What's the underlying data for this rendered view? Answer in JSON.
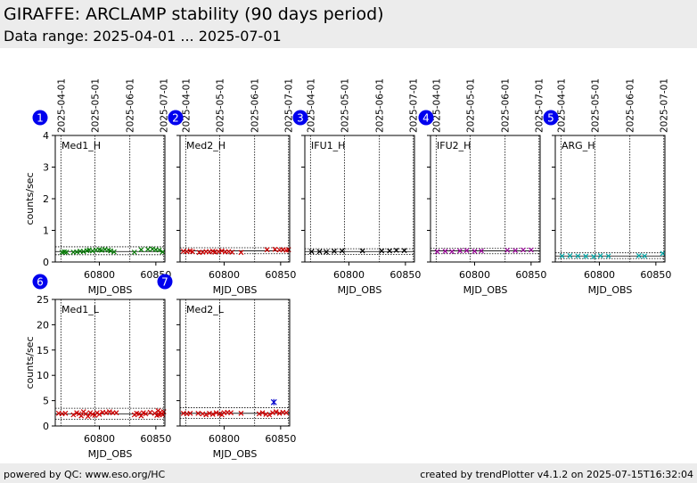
{
  "header": {
    "title": "GIRAFFE: ARCLAMP stability (90 days period)",
    "subtitle": "Data range: 2025-04-01 ... 2025-07-01"
  },
  "footer": {
    "left": "powered by QC: www.eso.org/HC",
    "right": "created by trendPlotter v4.1.2 on 2025-07-15T16:32:04"
  },
  "chart_data": [
    {
      "type": "scatter",
      "number": "1",
      "label": "Med1_H",
      "color": "#007700",
      "xlabel": "MJD_OBS",
      "ylabel": "counts/sec",
      "xlim": [
        60761,
        60858
      ],
      "ylim": [
        0,
        4
      ],
      "xticks": [
        60800,
        60850
      ],
      "yticks": [
        0,
        1,
        2,
        3,
        4
      ],
      "date_ticks": [
        {
          "mjd": 60766,
          "label": "2025-04-01"
        },
        {
          "mjd": 60796,
          "label": "2025-05-01"
        },
        {
          "mjd": 60827,
          "label": "2025-06-01"
        },
        {
          "mjd": 60857,
          "label": "2025-07-01"
        }
      ],
      "hlines_solid": [
        0.33
      ],
      "hlines_dotted": [
        0.23,
        0.48
      ],
      "points": [
        [
          60767,
          0.31
        ],
        [
          60769,
          0.32
        ],
        [
          60771,
          0.31
        ],
        [
          60777,
          0.31
        ],
        [
          60780,
          0.32
        ],
        [
          60783,
          0.34
        ],
        [
          60786,
          0.33
        ],
        [
          60789,
          0.36
        ],
        [
          60791,
          0.38
        ],
        [
          60794,
          0.35
        ],
        [
          60797,
          0.38
        ],
        [
          60800,
          0.39
        ],
        [
          60802,
          0.37
        ],
        [
          60805,
          0.4
        ],
        [
          60808,
          0.38
        ],
        [
          60810,
          0.35
        ],
        [
          60813,
          0.32
        ],
        [
          60831,
          0.31
        ],
        [
          60837,
          0.39
        ],
        [
          60843,
          0.4
        ],
        [
          60847,
          0.41
        ],
        [
          60850,
          0.39
        ],
        [
          60853,
          0.38
        ],
        [
          60856,
          0.32
        ]
      ]
    },
    {
      "type": "scatter",
      "number": "2",
      "label": "Med2_H",
      "color": "#cc0000",
      "xlabel": "MJD_OBS",
      "ylabel": "",
      "xlim": [
        60761,
        60858
      ],
      "ylim": [
        0,
        4
      ],
      "xticks": [
        60800,
        60850
      ],
      "yticks": [
        0,
        1,
        2,
        3,
        4
      ],
      "date_ticks": [
        {
          "mjd": 60766,
          "label": "2025-04-01"
        },
        {
          "mjd": 60796,
          "label": "2025-05-01"
        },
        {
          "mjd": 60827,
          "label": "2025-06-01"
        },
        {
          "mjd": 60857,
          "label": "2025-07-01"
        }
      ],
      "hlines_solid": [
        0.35
      ],
      "hlines_dotted": [
        0.26,
        0.45
      ],
      "points": [
        [
          60764,
          0.34
        ],
        [
          60767,
          0.33
        ],
        [
          60770,
          0.35
        ],
        [
          60772,
          0.33
        ],
        [
          60778,
          0.3
        ],
        [
          60781,
          0.31
        ],
        [
          60784,
          0.33
        ],
        [
          60787,
          0.32
        ],
        [
          60790,
          0.34
        ],
        [
          60792,
          0.31
        ],
        [
          60795,
          0.33
        ],
        [
          60798,
          0.35
        ],
        [
          60801,
          0.32
        ],
        [
          60804,
          0.33
        ],
        [
          60807,
          0.31
        ],
        [
          60815,
          0.3
        ],
        [
          60838,
          0.39
        ],
        [
          60845,
          0.4
        ],
        [
          60849,
          0.38
        ],
        [
          60852,
          0.39
        ],
        [
          60855,
          0.37
        ],
        [
          60857,
          0.39
        ]
      ]
    },
    {
      "type": "scatter",
      "number": "3",
      "label": "IFU1_H",
      "color": "#000000",
      "xlabel": "MJD_OBS",
      "ylabel": "",
      "xlim": [
        60761,
        60858
      ],
      "ylim": [
        0,
        4
      ],
      "xticks": [
        60800,
        60850
      ],
      "yticks": [
        0,
        1,
        2,
        3,
        4
      ],
      "date_ticks": [
        {
          "mjd": 60766,
          "label": "2025-04-01"
        },
        {
          "mjd": 60796,
          "label": "2025-05-01"
        },
        {
          "mjd": 60827,
          "label": "2025-06-01"
        },
        {
          "mjd": 60857,
          "label": "2025-07-01"
        }
      ],
      "hlines_solid": [
        0.33
      ],
      "hlines_dotted": [
        0.24,
        0.42
      ],
      "points": [
        [
          60767,
          0.33
        ],
        [
          60774,
          0.33
        ],
        [
          60780,
          0.32
        ],
        [
          60787,
          0.34
        ],
        [
          60794,
          0.35
        ],
        [
          60812,
          0.35
        ],
        [
          60829,
          0.35
        ],
        [
          60836,
          0.35
        ],
        [
          60842,
          0.37
        ],
        [
          60849,
          0.36
        ]
      ]
    },
    {
      "type": "scatter",
      "number": "4",
      "label": "IFU2_H",
      "color": "#990099",
      "xlabel": "MJD_OBS",
      "ylabel": "",
      "xlim": [
        60761,
        60858
      ],
      "ylim": [
        0,
        4
      ],
      "xticks": [
        60800,
        60850
      ],
      "yticks": [
        0,
        1,
        2,
        3,
        4
      ],
      "date_ticks": [
        {
          "mjd": 60766,
          "label": "2025-04-01"
        },
        {
          "mjd": 60796,
          "label": "2025-05-01"
        },
        {
          "mjd": 60827,
          "label": "2025-06-01"
        },
        {
          "mjd": 60857,
          "label": "2025-07-01"
        }
      ],
      "hlines_solid": [
        0.35
      ],
      "hlines_dotted": [
        0.26,
        0.43
      ],
      "points": [
        [
          60767,
          0.33
        ],
        [
          60774,
          0.34
        ],
        [
          60780,
          0.33
        ],
        [
          60787,
          0.35
        ],
        [
          60793,
          0.36
        ],
        [
          60800,
          0.34
        ],
        [
          60806,
          0.35
        ],
        [
          60829,
          0.37
        ],
        [
          60836,
          0.36
        ],
        [
          60843,
          0.38
        ],
        [
          60850,
          0.38
        ]
      ]
    },
    {
      "type": "scatter",
      "number": "5",
      "label": "ARG_H",
      "color": "#00aaaa",
      "xlabel": "MJD_OBS",
      "ylabel": "",
      "xlim": [
        60761,
        60858
      ],
      "ylim": [
        0,
        4
      ],
      "xticks": [
        60800,
        60850
      ],
      "yticks": [
        0,
        1,
        2,
        3,
        4
      ],
      "date_ticks": [
        {
          "mjd": 60766,
          "label": "2025-04-01"
        },
        {
          "mjd": 60796,
          "label": "2025-05-01"
        },
        {
          "mjd": 60827,
          "label": "2025-06-01"
        },
        {
          "mjd": 60857,
          "label": "2025-07-01"
        }
      ],
      "hlines_solid": [
        0.19
      ],
      "hlines_dotted": [
        0.11,
        0.29
      ],
      "points": [
        [
          60767,
          0.19
        ],
        [
          60774,
          0.2
        ],
        [
          60781,
          0.19
        ],
        [
          60788,
          0.18
        ],
        [
          60795,
          0.17
        ],
        [
          60801,
          0.2
        ],
        [
          60808,
          0.19
        ],
        [
          60835,
          0.2
        ],
        [
          60840,
          0.19
        ],
        [
          60856,
          0.27
        ]
      ]
    },
    {
      "type": "scatter",
      "number": "6",
      "label": "Med1_L",
      "color": "#cc0000",
      "xlabel": "MJD_OBS",
      "ylabel": "counts/sec",
      "xlim": [
        60761,
        60858
      ],
      "ylim": [
        0,
        25
      ],
      "xticks": [
        60800,
        60850
      ],
      "yticks": [
        0,
        5,
        10,
        15,
        20,
        25
      ],
      "date_ticks": [
        {
          "mjd": 60766,
          "label": "2025-04-01"
        },
        {
          "mjd": 60796,
          "label": "2025-05-01"
        },
        {
          "mjd": 60827,
          "label": "2025-06-01"
        },
        {
          "mjd": 60857,
          "label": "2025-07-01"
        }
      ],
      "hlines_solid": [
        2.4
      ],
      "hlines_dotted": [
        1.3,
        3.5
      ],
      "points": [
        [
          60764,
          2.5
        ],
        [
          60767,
          2.4
        ],
        [
          60770,
          2.5
        ],
        [
          60777,
          2.2
        ],
        [
          60780,
          2.6
        ],
        [
          60782,
          2.4
        ],
        [
          60784,
          2.0
        ],
        [
          60786,
          2.8
        ],
        [
          60788,
          2.4
        ],
        [
          60790,
          1.9
        ],
        [
          60792,
          2.6
        ],
        [
          60794,
          2.3
        ],
        [
          60796,
          2.1
        ],
        [
          60798,
          2.6
        ],
        [
          60800,
          2.3
        ],
        [
          60803,
          2.7
        ],
        [
          60806,
          2.6
        ],
        [
          60809,
          2.8
        ],
        [
          60812,
          2.6
        ],
        [
          60815,
          2.6
        ],
        [
          60831,
          2.2
        ],
        [
          60833,
          2.5
        ],
        [
          60835,
          2.4
        ],
        [
          60837,
          2.0
        ],
        [
          60839,
          2.6
        ],
        [
          60841,
          2.4
        ],
        [
          60845,
          2.7
        ],
        [
          60849,
          2.5
        ],
        [
          60851,
          2.1
        ],
        [
          60852,
          3.0
        ],
        [
          60853,
          2.2
        ],
        [
          60854,
          2.7
        ],
        [
          60855,
          2.4
        ],
        [
          60856,
          2.2
        ],
        [
          60857,
          2.8
        ]
      ]
    },
    {
      "type": "scatter",
      "number": "7",
      "label": "Med2_L",
      "color": "#cc0000",
      "xlabel": "MJD_OBS",
      "ylabel": "",
      "xlim": [
        60761,
        60858
      ],
      "ylim": [
        0,
        25
      ],
      "xticks": [
        60800,
        60850
      ],
      "yticks": [
        0,
        5,
        10,
        15,
        20,
        25
      ],
      "date_ticks": [
        {
          "mjd": 60766,
          "label": "2025-04-01"
        },
        {
          "mjd": 60796,
          "label": "2025-05-01"
        },
        {
          "mjd": 60827,
          "label": "2025-06-01"
        },
        {
          "mjd": 60857,
          "label": "2025-07-01"
        }
      ],
      "hlines_solid": [
        2.5
      ],
      "hlines_dotted": [
        1.5,
        3.6
      ],
      "points": [
        [
          60764,
          2.5
        ],
        [
          60767,
          2.4
        ],
        [
          60770,
          2.5
        ],
        [
          60777,
          2.5
        ],
        [
          60781,
          2.4
        ],
        [
          60784,
          2.2
        ],
        [
          60787,
          2.5
        ],
        [
          60790,
          2.3
        ],
        [
          60793,
          2.6
        ],
        [
          60796,
          2.4
        ],
        [
          60798,
          2.2
        ],
        [
          60800,
          2.6
        ],
        [
          60803,
          2.7
        ],
        [
          60806,
          2.6
        ],
        [
          60815,
          2.5
        ],
        [
          60831,
          2.4
        ],
        [
          60834,
          2.6
        ],
        [
          60837,
          2.3
        ],
        [
          60840,
          2.2
        ],
        [
          60843,
          2.6
        ],
        [
          60846,
          2.8
        ],
        [
          60849,
          2.5
        ],
        [
          60852,
          2.7
        ],
        [
          60855,
          2.6
        ]
      ],
      "outliers": [
        [
          60844,
          4.7
        ]
      ],
      "outlier_color": "#0000cc"
    }
  ]
}
